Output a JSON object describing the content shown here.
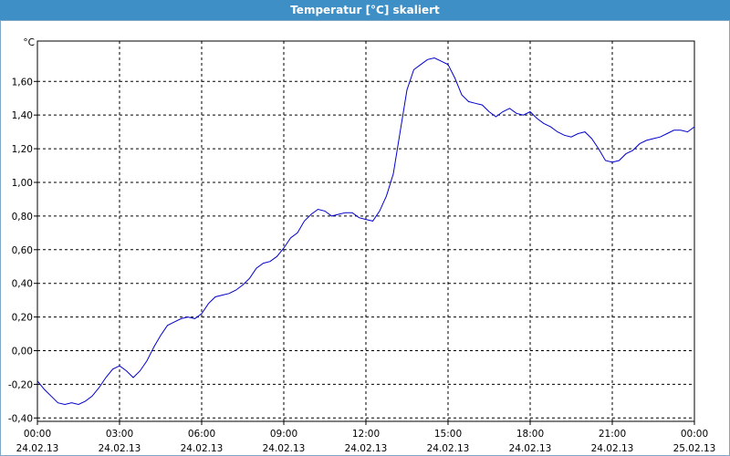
{
  "window": {
    "title": "Temperatur [°C] skaliert"
  },
  "chart_data": {
    "type": "line",
    "title": "Temperatur [°C] skaliert",
    "ylabel": "°C",
    "ylim": [
      -0.42,
      1.84
    ],
    "yticks": [
      "-0,40",
      "-0,20",
      "0,00",
      "0,20",
      "0,40",
      "0,60",
      "0,80",
      "1,00",
      "1,20",
      "1,40",
      "1,60"
    ],
    "ytick_values": [
      -0.4,
      -0.2,
      0,
      0.2,
      0.4,
      0.6,
      0.8,
      1.0,
      1.2,
      1.4,
      1.6
    ],
    "xticks": [
      {
        "time": "00:00",
        "date": "24.02.13"
      },
      {
        "time": "03:00",
        "date": "24.02.13"
      },
      {
        "time": "06:00",
        "date": "24.02.13"
      },
      {
        "time": "09:00",
        "date": "24.02.13"
      },
      {
        "time": "12:00",
        "date": "24.02.13"
      },
      {
        "time": "15:00",
        "date": "24.02.13"
      },
      {
        "time": "18:00",
        "date": "24.02.13"
      },
      {
        "time": "21:00",
        "date": "24.02.13"
      },
      {
        "time": "00:00",
        "date": "25.02.13"
      }
    ],
    "xlim_hours": [
      0,
      24
    ],
    "grid": true,
    "series": [
      {
        "color": "#0000cc",
        "x": [
          0,
          0.25,
          0.5,
          0.75,
          1.0,
          1.25,
          1.5,
          1.75,
          2.0,
          2.25,
          2.5,
          2.75,
          3.0,
          3.25,
          3.5,
          3.75,
          4.0,
          4.25,
          4.5,
          4.75,
          5.0,
          5.25,
          5.5,
          5.75,
          6.0,
          6.25,
          6.5,
          6.75,
          7.0,
          7.25,
          7.5,
          7.75,
          8.0,
          8.25,
          8.5,
          8.75,
          9.0,
          9.25,
          9.5,
          9.75,
          10.0,
          10.25,
          10.5,
          10.75,
          11.0,
          11.25,
          11.5,
          11.75,
          12.0,
          12.25,
          12.5,
          12.75,
          13.0,
          13.25,
          13.5,
          13.75,
          14.0,
          14.25,
          14.5,
          14.75,
          15.0,
          15.25,
          15.5,
          15.75,
          16.0,
          16.25,
          16.5,
          16.75,
          17.0,
          17.25,
          17.5,
          17.75,
          18.0,
          18.25,
          18.5,
          18.75,
          19.0,
          19.25,
          19.5,
          19.75,
          20.0,
          20.25,
          20.5,
          20.75,
          21.0,
          21.25,
          21.5,
          21.75,
          22.0,
          22.25,
          22.5,
          22.75,
          23.0,
          23.25,
          23.5,
          23.75,
          24.0
        ],
        "values": [
          -0.18,
          -0.23,
          -0.27,
          -0.31,
          -0.32,
          -0.31,
          -0.32,
          -0.3,
          -0.27,
          -0.22,
          -0.16,
          -0.11,
          -0.09,
          -0.12,
          -0.16,
          -0.12,
          -0.06,
          0.02,
          0.09,
          0.15,
          0.17,
          0.19,
          0.2,
          0.19,
          0.22,
          0.28,
          0.32,
          0.33,
          0.34,
          0.36,
          0.39,
          0.43,
          0.49,
          0.52,
          0.53,
          0.56,
          0.61,
          0.67,
          0.7,
          0.77,
          0.81,
          0.84,
          0.83,
          0.8,
          0.81,
          0.82,
          0.82,
          0.79,
          0.78,
          0.77,
          0.83,
          0.92,
          1.05,
          1.3,
          1.55,
          1.67,
          1.7,
          1.73,
          1.74,
          1.72,
          1.7,
          1.62,
          1.52,
          1.48,
          1.47,
          1.46,
          1.42,
          1.39,
          1.42,
          1.44,
          1.41,
          1.4,
          1.42,
          1.38,
          1.35,
          1.33,
          1.3,
          1.28,
          1.27,
          1.29,
          1.3,
          1.26,
          1.2,
          1.13,
          1.12,
          1.13,
          1.17,
          1.19,
          1.23,
          1.25,
          1.26,
          1.27,
          1.29,
          1.31,
          1.31,
          1.3,
          1.33
        ]
      }
    ]
  }
}
